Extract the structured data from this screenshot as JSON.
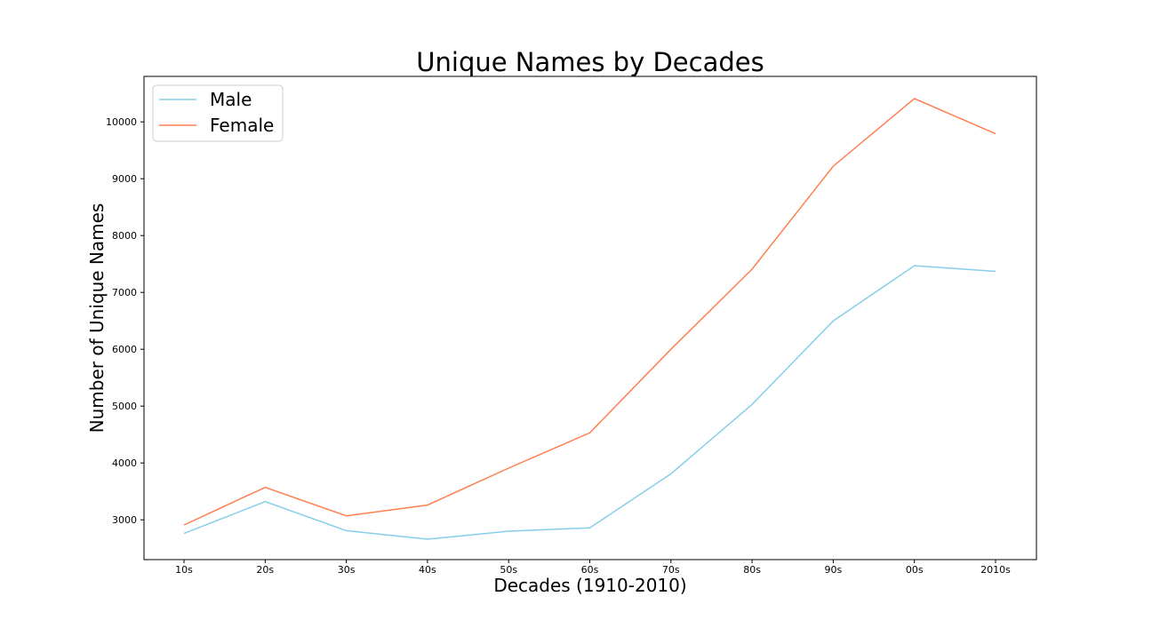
{
  "chart_data": {
    "type": "line",
    "title": "Unique Names by Decades",
    "xlabel": "Decades (1910-2010)",
    "ylabel": "Number of Unique Names",
    "categories": [
      "10s",
      "20s",
      "30s",
      "40s",
      "50s",
      "60s",
      "70s",
      "80s",
      "90s",
      "00s",
      "2010s"
    ],
    "yticks": [
      3000,
      4000,
      5000,
      6000,
      7000,
      8000,
      9000,
      10000
    ],
    "ylim": [
      2300,
      10800
    ],
    "grid": false,
    "legend_position": "top-left",
    "series": [
      {
        "name": "Male",
        "color": "#87ceeb",
        "values": [
          2760,
          3320,
          2810,
          2660,
          2800,
          2860,
          3810,
          5030,
          6500,
          7470,
          7370
        ]
      },
      {
        "name": "Female",
        "color": "#ff7f50",
        "values": [
          2910,
          3570,
          3070,
          3260,
          3910,
          4530,
          6000,
          7410,
          9220,
          10410,
          9790
        ]
      }
    ]
  }
}
